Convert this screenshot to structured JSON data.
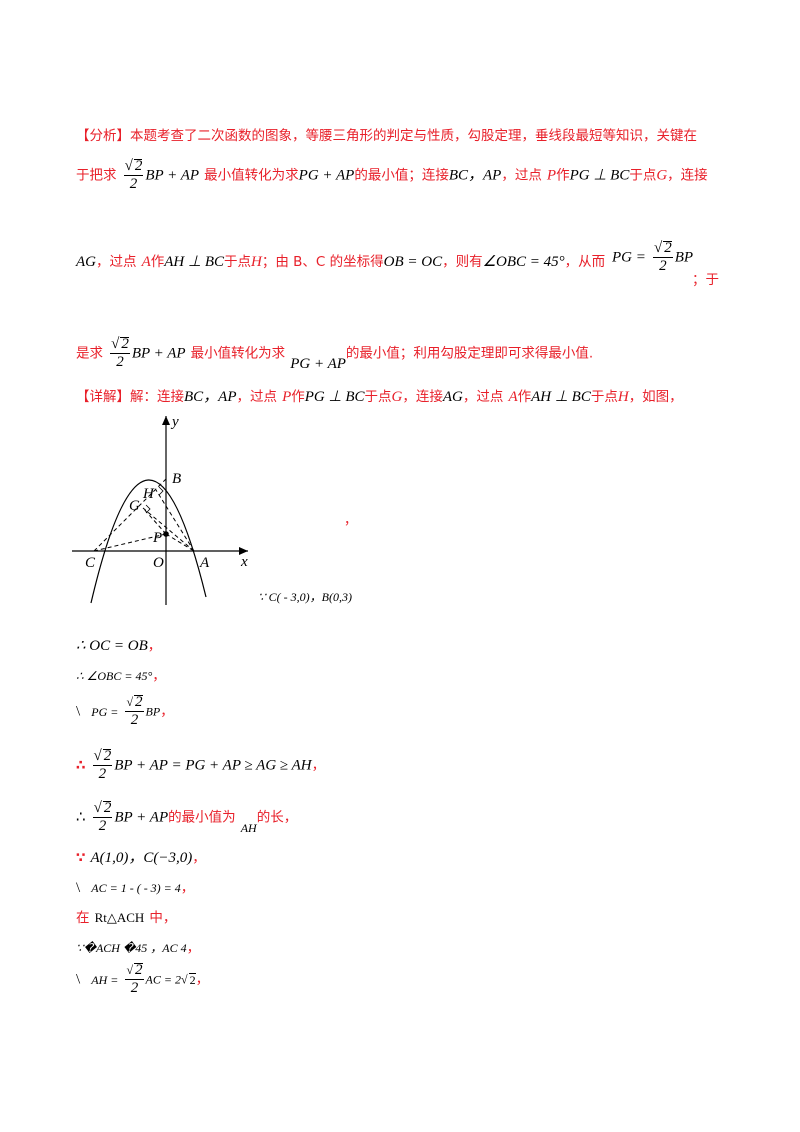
{
  "analysis": {
    "tag": "【分析】",
    "intro": "本题考查了二次函数的图象，等腰三角形的判定与性质，勾股定理，垂线段最短等知识，关键在",
    "l2_a": "于把求",
    "expr_sqrt2": "2",
    "expr_den": "2",
    "expr_bp_ap": "BP + AP",
    "l2_b": "最小值转化为求",
    "expr_pg_ap": "PG + AP",
    "l2_c": "的最小值；连接",
    "bc_ap": "BC，AP",
    "l2_d": "，过点",
    "P": "P",
    "zuo": "作",
    "pg_perp_bc": "PG ⊥ BC",
    "l2_e": "于点",
    "G": "G",
    "l2_f": "，连接",
    "AG": "AG",
    "l3_a": "，过点",
    "A": "A",
    "ah_perp_bc": "AH ⊥ BC",
    "l3_b": "于点",
    "H": "H",
    "l3_c": "；由 B、C 的坐标得",
    "ob_oc": "OB = OC",
    "l3_d": "，则有",
    "angle_obc": "∠OBC = 45°",
    "l3_e": "，从而",
    "pg_eq": "PG =",
    "bp": "BP",
    "l3_f": "；于",
    "l4_a": "是求",
    "l4_b": "最小值转化为求",
    "l4_c": "的最小值；利用勾股定理即可求得最小值."
  },
  "detail": {
    "tag": "【详解】",
    "jie": "解：连接",
    "bc_ap": "BC，AP",
    "a": "，过点",
    "P": "P",
    "zuo": "作",
    "pg_perp_bc": "PG ⊥ BC",
    "b": "于点",
    "G": "G",
    "c": "，连接",
    "AG": "AG",
    "d": "，过点",
    "A": "A",
    "ah_perp_bc": "AH ⊥ BC",
    "e": "于点",
    "H": "H",
    "f": "，如图，"
  },
  "figure": {
    "labels": {
      "y": "y",
      "x": "x",
      "B": "B",
      "H": "H",
      "G": "G",
      "P": "P",
      "C": "C",
      "O": "O",
      "A": "A"
    },
    "comma": "，"
  },
  "steps": {
    "s1": "∵ C( - 3,0)，B(0,3)",
    "s2_m": "∴ OC = OB",
    "s2_p": "，",
    "s3_m": "∴ ∠OBC = 45°",
    "s3_p": "，",
    "s4_pre": "\\",
    "s4_pg": "PG =",
    "s4_bp": "BP",
    "s4_p": "，",
    "s5_pre": "∴",
    "s5_rest": "BP + AP = PG + AP ≥ AG ≥ AH",
    "s5_p": "，",
    "s6_pre": "∴",
    "s6_bpap": "BP + AP",
    "s6_txt": "的最小值为",
    "s6_ah": "AH",
    "s6_txt2": "的长，",
    "s7_pre": "∵",
    "s7_m": "A(1,0)，C(−3,0)",
    "s7_p": "，",
    "s8_pre": "\\",
    "s8_m": "AC = 1 - ( - 3) = 4",
    "s8_p": "，",
    "s9_a": "在",
    "s9_m": "Rt△ACH",
    "s9_b": "中，",
    "s10": "∵�ACH �45 ，AC   4",
    "s10_p": "，",
    "s11_pre": "\\",
    "s11_ah": "AH =",
    "s11_ac": "AC = 2",
    "s11_r": "2",
    "s11_p": "，"
  }
}
